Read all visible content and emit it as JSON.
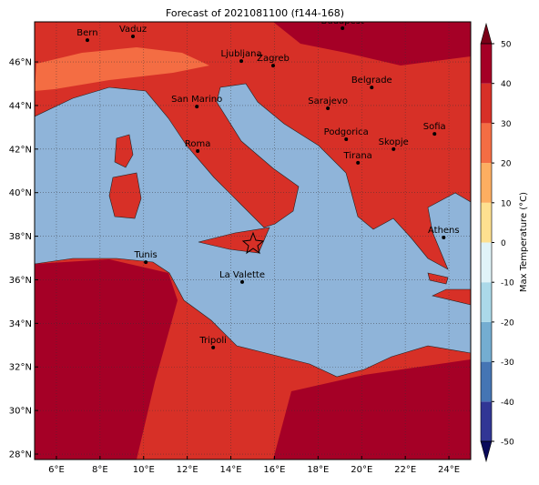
{
  "title": "Forecast of 2021081100 (f144-168)",
  "map": {
    "xlim": [
      5,
      25
    ],
    "ylim": [
      27.75,
      47.84
    ],
    "lon_ticks": [
      {
        "value": 6,
        "label": "6°E"
      },
      {
        "value": 8,
        "label": "8°E"
      },
      {
        "value": 10,
        "label": "10°E"
      },
      {
        "value": 12,
        "label": "12°E"
      },
      {
        "value": 14,
        "label": "14°E"
      },
      {
        "value": 16,
        "label": "16°E"
      },
      {
        "value": 18,
        "label": "18°E"
      },
      {
        "value": 20,
        "label": "20°E"
      },
      {
        "value": 22,
        "label": "22°E"
      },
      {
        "value": 24,
        "label": "24°E"
      }
    ],
    "lat_ticks": [
      {
        "value": 28,
        "label": "28°N"
      },
      {
        "value": 30,
        "label": "30°N"
      },
      {
        "value": 32,
        "label": "32°N"
      },
      {
        "value": 34,
        "label": "34°N"
      },
      {
        "value": 36,
        "label": "36°N"
      },
      {
        "value": 38,
        "label": "38°N"
      },
      {
        "value": 40,
        "label": "40°N"
      },
      {
        "value": 42,
        "label": "42°N"
      },
      {
        "value": 44,
        "label": "44°N"
      },
      {
        "value": 46,
        "label": "46°N"
      }
    ],
    "cities": [
      {
        "name": "Bern",
        "lon": 7.42,
        "lat": 47.0
      },
      {
        "name": "Vaduz",
        "lon": 9.51,
        "lat": 47.17
      },
      {
        "name": "Budapest",
        "lon": 19.12,
        "lat": 47.55
      },
      {
        "name": "Ljubljana",
        "lon": 14.48,
        "lat": 46.04
      },
      {
        "name": "Zagreb",
        "lon": 15.94,
        "lat": 45.83
      },
      {
        "name": "Belgrade",
        "lon": 20.46,
        "lat": 44.83
      },
      {
        "name": "San Marino",
        "lon": 12.44,
        "lat": 43.95
      },
      {
        "name": "Sarajevo",
        "lon": 18.45,
        "lat": 43.87
      },
      {
        "name": "Sofia",
        "lon": 23.34,
        "lat": 42.7
      },
      {
        "name": "Podgorica",
        "lon": 19.29,
        "lat": 42.45
      },
      {
        "name": "Skopje",
        "lon": 21.46,
        "lat": 42.0
      },
      {
        "name": "Roma",
        "lon": 12.48,
        "lat": 41.91
      },
      {
        "name": "Tirana",
        "lon": 19.83,
        "lat": 41.37
      },
      {
        "name": "Athens",
        "lon": 23.76,
        "lat": 37.94
      },
      {
        "name": "Tunis",
        "lon": 10.1,
        "lat": 36.81
      },
      {
        "name": "La Valette",
        "lon": 14.52,
        "lat": 35.9
      },
      {
        "name": "Tripoli",
        "lon": 13.19,
        "lat": 32.89
      }
    ]
  },
  "colorbar": {
    "label": "Max Temperature (°C)",
    "ticks": [
      -50,
      -40,
      -30,
      -20,
      -10,
      0,
      10,
      20,
      30,
      40,
      50
    ],
    "colors": [
      "#313695",
      "#4575b4",
      "#74add1",
      "#abd9e9",
      "#e0f3f8",
      "#fee090",
      "#fdae61",
      "#f46d43",
      "#d73027",
      "#a50026"
    ],
    "under_color": "#0a0a5a",
    "over_color": "#7a0018"
  }
}
